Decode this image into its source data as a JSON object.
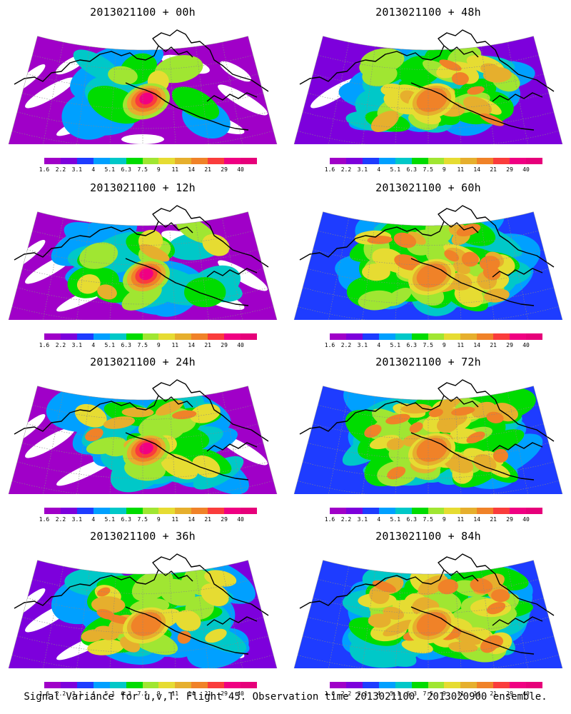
{
  "panels": [
    {
      "title": "2013021100 + 00h",
      "stage": 0
    },
    {
      "title": "2013021100 + 48h",
      "stage": 4
    },
    {
      "title": "2013021100 + 12h",
      "stage": 1
    },
    {
      "title": "2013021100 + 60h",
      "stage": 5
    },
    {
      "title": "2013021100 + 24h",
      "stage": 2
    },
    {
      "title": "2013021100 + 72h",
      "stage": 6
    },
    {
      "title": "2013021100 + 36h",
      "stage": 3
    },
    {
      "title": "2013021100 + 84h",
      "stage": 7
    }
  ],
  "colorbar": {
    "labels": [
      "1.6",
      "2.2",
      "3.1",
      "4",
      "5.1",
      "6.3",
      "7.5",
      "9",
      "11",
      "14",
      "21",
      "29",
      "40"
    ],
    "colors": [
      "#a000c8",
      "#7d00dc",
      "#1e3cff",
      "#00a0ff",
      "#00c8c8",
      "#00dc00",
      "#a0e632",
      "#e6dc32",
      "#e6af2d",
      "#f08228",
      "#fa3c3c",
      "#f00082",
      "#e6007a"
    ]
  },
  "colors": {
    "below_threshold": "#ffffff",
    "coastline": "#000000",
    "grid": "#888888"
  },
  "caption": "Signal Variance for u,v,T. Flight 45. Observation time 2013021100. 2013020900 ensemble."
}
